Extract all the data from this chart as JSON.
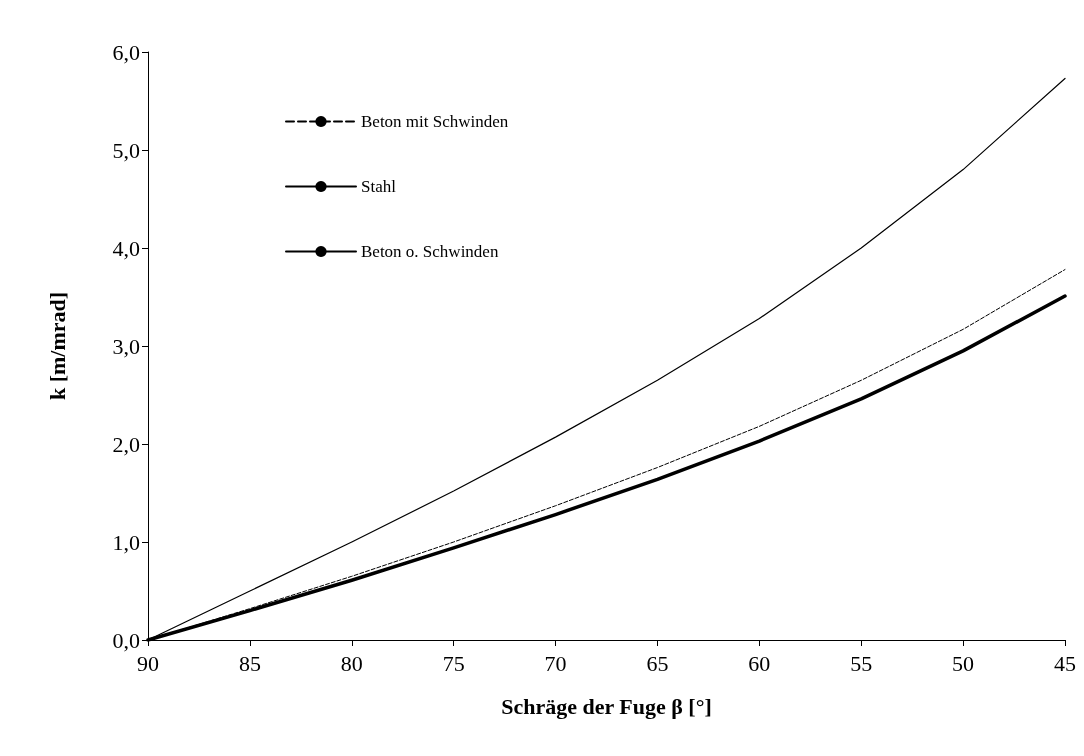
{
  "chart_data": {
    "type": "line",
    "xlabel": "Schräge der Fuge β [°]",
    "ylabel": "k [m/mrad]",
    "x": [
      90,
      85,
      80,
      75,
      70,
      65,
      60,
      55,
      50,
      45
    ],
    "xlim": [
      90,
      45
    ],
    "xticks": [
      90,
      85,
      80,
      75,
      70,
      65,
      60,
      55,
      50,
      45
    ],
    "ylim": [
      0,
      6
    ],
    "yticks": [
      {
        "value": 0,
        "label": "0,0"
      },
      {
        "value": 1,
        "label": "1,0"
      },
      {
        "value": 2,
        "label": "2,0"
      },
      {
        "value": 3,
        "label": "3,0"
      },
      {
        "value": 4,
        "label": "4,0"
      },
      {
        "value": 5,
        "label": "5,0"
      },
      {
        "value": 6,
        "label": "6,0"
      }
    ],
    "grid": false,
    "legend": "top left",
    "marker": "none",
    "series": [
      {
        "name": "Beton mit Schwinden",
        "color": "#000000",
        "line_style": "dashed",
        "values": [
          0,
          0.32,
          0.65,
          1.0,
          1.37,
          1.76,
          2.18,
          2.65,
          3.17,
          3.78
        ]
      },
      {
        "name": "Stahl",
        "color": "#000000",
        "line_style": "solid",
        "values": [
          0,
          0.3,
          0.61,
          0.94,
          1.28,
          1.64,
          2.03,
          2.46,
          2.95,
          3.51
        ]
      },
      {
        "name": "Beton o. Schwinden",
        "color": "#000000",
        "line_style": "solid",
        "values": [
          0,
          0.5,
          1.0,
          1.52,
          2.07,
          2.65,
          3.28,
          4.0,
          4.8,
          5.73
        ]
      }
    ]
  }
}
